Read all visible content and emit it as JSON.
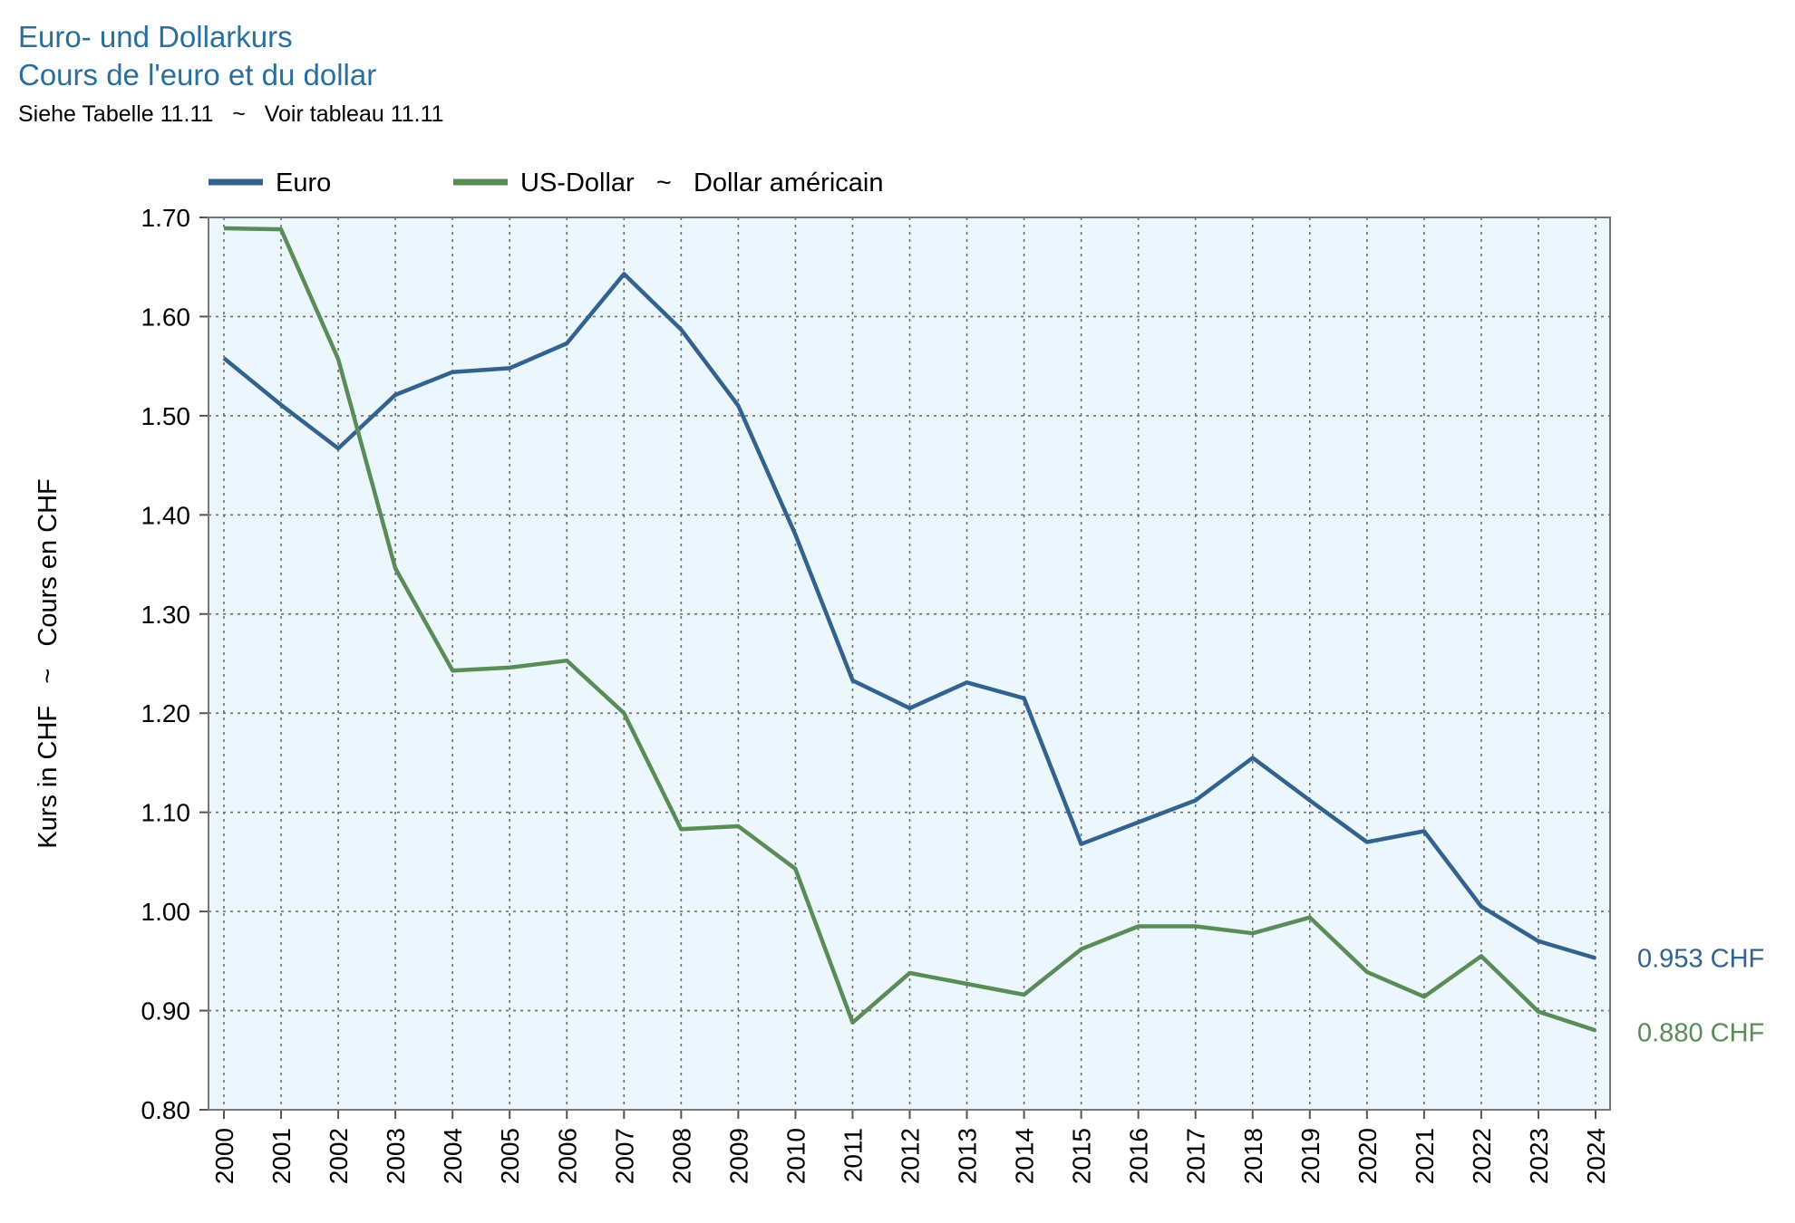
{
  "header": {
    "title_de": "Euro- und Dollarkurs",
    "title_fr": "Cours de l'euro et du dollar",
    "subtitle": "Siehe Tabelle 11.11   ~   Voir tableau 11.11"
  },
  "colors": {
    "euro": "#33628f",
    "usd": "#5a8c58",
    "plot_bg": "#ecf6fd",
    "grid": "#6d6d6d"
  },
  "chart_data": {
    "type": "line",
    "ylabel": "Kurs in CHF   ~   Cours en CHF",
    "ylim": [
      0.8,
      1.7
    ],
    "yticks": [
      "0.80",
      "0.90",
      "1.00",
      "1.10",
      "1.20",
      "1.30",
      "1.40",
      "1.50",
      "1.60",
      "1.70"
    ],
    "x": [
      "2000",
      "2001",
      "2002",
      "2003",
      "2004",
      "2005",
      "2006",
      "2007",
      "2008",
      "2009",
      "2010",
      "2011",
      "2012",
      "2013",
      "2014",
      "2015",
      "2016",
      "2017",
      "2018",
      "2019",
      "2020",
      "2021",
      "2022",
      "2023",
      "2024"
    ],
    "legend_position": "top-left",
    "series": [
      {
        "name": "Euro",
        "color": "#33628f",
        "values": [
          1.558,
          1.511,
          1.467,
          1.521,
          1.544,
          1.548,
          1.573,
          1.643,
          1.587,
          1.51,
          1.38,
          1.233,
          1.205,
          1.231,
          1.215,
          1.068,
          1.09,
          1.112,
          1.155,
          1.112,
          1.07,
          1.081,
          1.005,
          0.97,
          0.953
        ],
        "end_label": "0.953 CHF"
      },
      {
        "name": "US-Dollar   ~   Dollar américain",
        "color": "#5a8c58",
        "values": [
          1.689,
          1.688,
          1.557,
          1.346,
          1.243,
          1.246,
          1.253,
          1.2,
          1.083,
          1.086,
          1.043,
          0.888,
          0.938,
          0.927,
          0.916,
          0.962,
          0.985,
          0.985,
          0.978,
          0.994,
          0.939,
          0.914,
          0.955,
          0.899,
          0.88
        ],
        "end_label": "0.880 CHF"
      }
    ]
  }
}
